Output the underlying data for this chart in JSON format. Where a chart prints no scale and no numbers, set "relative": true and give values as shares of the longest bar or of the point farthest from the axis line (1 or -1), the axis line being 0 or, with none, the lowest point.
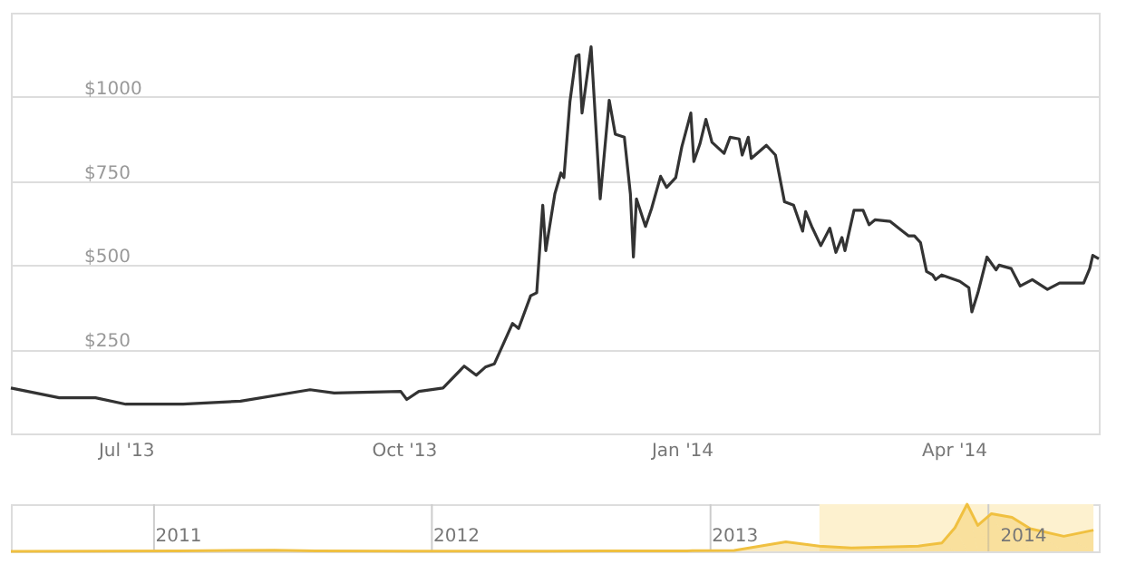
{
  "chart_data": [
    {
      "type": "line",
      "color": "#333333",
      "marker": "none",
      "line_style": "solid",
      "grid": "y",
      "x": [
        "2013-05-24",
        "2013-06-09",
        "2013-06-21",
        "2013-07-01",
        "2013-07-20",
        "2013-08-08",
        "2013-08-31",
        "2013-09-08",
        "2013-09-30",
        "2013-10-02",
        "2013-10-06",
        "2013-10-14",
        "2013-10-21",
        "2013-10-25",
        "2013-10-28",
        "2013-10-31",
        "2013-11-06",
        "2013-11-08",
        "2013-11-12",
        "2013-11-14",
        "2013-11-16",
        "2013-11-17",
        "2013-11-20",
        "2013-11-22",
        "2013-11-23",
        "2013-11-25",
        "2013-11-27",
        "2013-11-28",
        "2013-11-29",
        "2013-12-02",
        "2013-12-05",
        "2013-12-08",
        "2013-12-10",
        "2013-12-13",
        "2013-12-15",
        "2013-12-16",
        "2013-12-17",
        "2013-12-20",
        "2013-12-22",
        "2013-12-25",
        "2013-12-27",
        "2013-12-30",
        "2014-01-01",
        "2014-01-04",
        "2014-01-05",
        "2014-01-07",
        "2014-01-09",
        "2014-01-11",
        "2014-01-15",
        "2014-01-17",
        "2014-01-20",
        "2014-01-21",
        "2014-01-23",
        "2014-01-24",
        "2014-01-29",
        "2014-02-01",
        "2014-02-04",
        "2014-02-07",
        "2014-02-10",
        "2014-02-11",
        "2014-02-13",
        "2014-02-16",
        "2014-02-19",
        "2014-02-21",
        "2014-02-23",
        "2014-02-24",
        "2014-02-27",
        "2014-03-02",
        "2014-03-04",
        "2014-03-06",
        "2014-03-11",
        "2014-03-17",
        "2014-03-19",
        "2014-03-21",
        "2014-03-23",
        "2014-03-25",
        "2014-03-26",
        "2014-03-28",
        "2014-04-03",
        "2014-04-06",
        "2014-04-07",
        "2014-04-09",
        "2014-04-12",
        "2014-04-15",
        "2014-04-16",
        "2014-04-20",
        "2014-04-23",
        "2014-04-27",
        "2014-05-02",
        "2014-05-06",
        "2014-05-14",
        "2014-05-16",
        "2014-05-17",
        "2014-05-19"
      ],
      "values": [
        135,
        106,
        106,
        87,
        87,
        96,
        130,
        120,
        125,
        101,
        125,
        135,
        200,
        173,
        197,
        207,
        327,
        312,
        409,
        418,
        678,
        543,
        712,
        774,
        760,
        986,
        1120,
        1125,
        952,
        1149,
        697,
        990,
        889,
        880,
        712,
        524,
        697,
        615,
        668,
        764,
        731,
        760,
        851,
        952,
        808,
        860,
        933,
        865,
        832,
        880,
        875,
        827,
        880,
        817,
        856,
        827,
        688,
        678,
        601,
        659,
        615,
        558,
        610,
        538,
        582,
        543,
        663,
        663,
        620,
        635,
        630,
        587,
        587,
        567,
        481,
        471,
        457,
        471,
        452,
        433,
        361,
        418,
        524,
        486,
        500,
        490,
        438,
        457,
        428,
        447,
        447,
        490,
        529,
        519
      ],
      "xlim": [
        "2013-05-24",
        "2014-05-19"
      ],
      "xticks": [
        {
          "value": "2013-07-01",
          "label": "Jul '13"
        },
        {
          "value": "2013-10-01",
          "label": "Oct '13"
        },
        {
          "value": "2014-01-01",
          "label": "Jan '14"
        },
        {
          "value": "2014-04-01",
          "label": "Apr '14"
        }
      ],
      "ylim": [
        0,
        1250
      ],
      "yticks": [
        {
          "value": 250,
          "label": "$250"
        },
        {
          "value": 500,
          "label": "$500"
        },
        {
          "value": 750,
          "label": "$750"
        },
        {
          "value": 1000,
          "label": "$1000"
        }
      ]
    },
    {
      "type": "area",
      "relative": true,
      "color": "#f0c040",
      "ref_lines": [
        {
          "axis": "x",
          "value": "2011-01-01",
          "color": "#cccccc"
        },
        {
          "axis": "x",
          "value": "2012-01-01",
          "color": "#cccccc"
        },
        {
          "axis": "x",
          "value": "2013-01-01",
          "color": "#cccccc"
        },
        {
          "axis": "x",
          "value": "2014-01-01",
          "color": "#cccccc"
        }
      ],
      "x": [
        "2010-06-27",
        "2011-02-01",
        "2011-06-08",
        "2011-08-01",
        "2011-12-01",
        "2012-06-01",
        "2012-08-15",
        "2012-12-01",
        "2013-02-01",
        "2013-04-10",
        "2013-05-24",
        "2013-07-05",
        "2013-10-01",
        "2013-11-01",
        "2013-11-18",
        "2013-12-04",
        "2013-12-18",
        "2014-01-05",
        "2014-02-01",
        "2014-02-25",
        "2014-04-10",
        "2014-05-19"
      ],
      "values": [
        0,
        0.01,
        0.026,
        0.012,
        0.003,
        0.005,
        0.01,
        0.012,
        0.02,
        0.2,
        0.11,
        0.07,
        0.11,
        0.18,
        0.5,
        1,
        0.55,
        0.8,
        0.72,
        0.48,
        0.32,
        0.45
      ],
      "xlim": [
        "2010-06-27",
        "2014-05-26"
      ],
      "xticks": [
        {
          "value": "2011-02-01",
          "label": "2011"
        },
        {
          "value": "2012-02-01",
          "label": "2012"
        },
        {
          "value": "2013-02-01",
          "label": "2013"
        },
        {
          "value": "2014-02-15",
          "label": "2014"
        }
      ],
      "bands": [
        {
          "axis": "x",
          "from": "2013-05-24",
          "to": "2014-05-19",
          "color": "#fdf1cf"
        }
      ]
    }
  ]
}
